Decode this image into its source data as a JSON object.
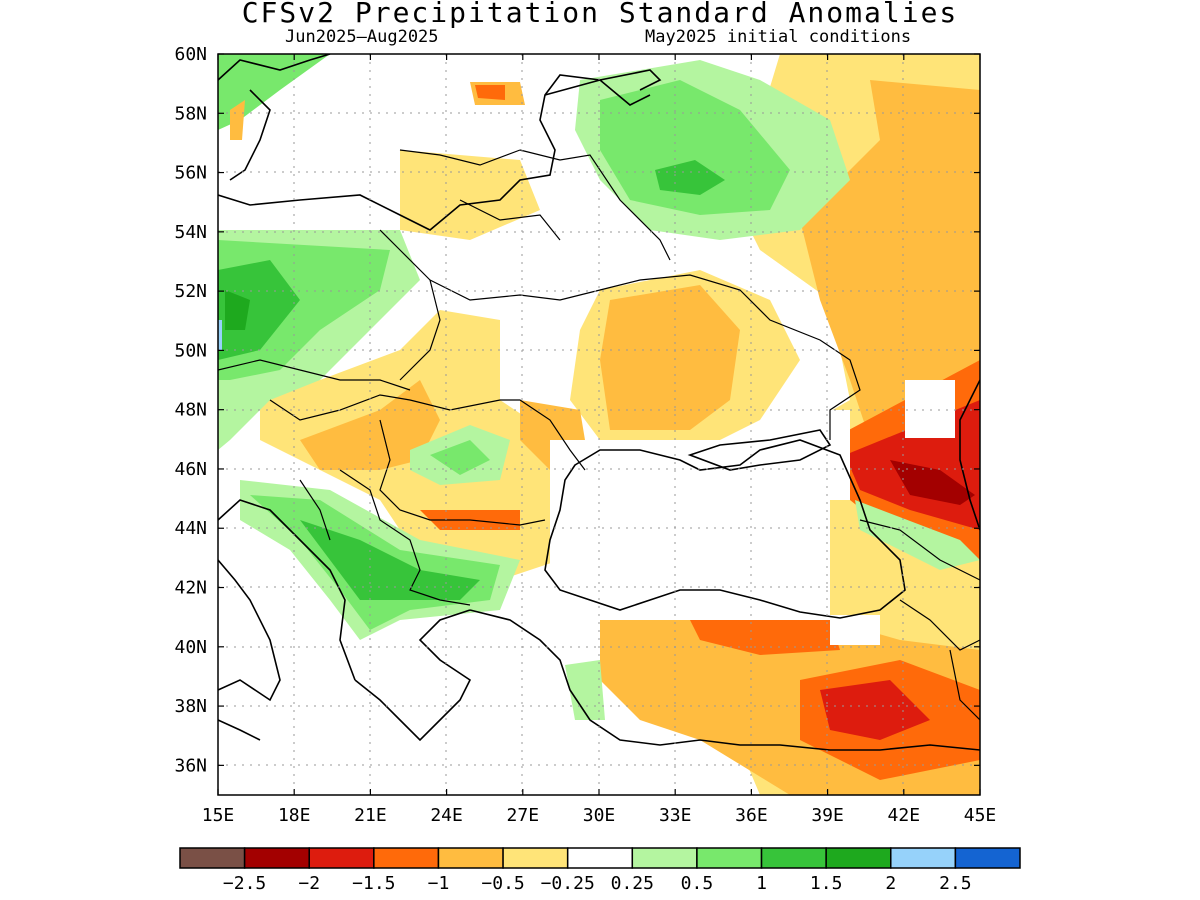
{
  "title": "CFSv2 Precipitation Standard Anomalies",
  "subtitle_left": "Jun2025–Aug2025",
  "subtitle_right": "May2025 initial conditions",
  "map": {
    "lon_range": [
      15,
      45
    ],
    "lat_range": [
      35,
      60
    ],
    "x_ticks": [
      "15E",
      "18E",
      "21E",
      "24E",
      "27E",
      "30E",
      "33E",
      "36E",
      "39E",
      "42E",
      "45E"
    ],
    "y_ticks": [
      "60N",
      "58N",
      "56N",
      "54N",
      "52N",
      "50N",
      "48N",
      "46N",
      "44N",
      "42N",
      "40N",
      "38N",
      "36N"
    ],
    "grid": true
  },
  "legend": {
    "colors": [
      "#7a5046",
      "#a30000",
      "#dd1c0e",
      "#ff6a0a",
      "#ffbc40",
      "#ffe478",
      "#ffffff",
      "#b4f5a0",
      "#78e86c",
      "#37c43a",
      "#1ea91e",
      "#96d2fa",
      "#1464d2"
    ],
    "labels": [
      "−2.5",
      "−2",
      "−1.5",
      "−1",
      "−0.5",
      "−0.25",
      "0.25",
      "0.5",
      "1",
      "1.5",
      "2",
      "2.5"
    ]
  }
}
